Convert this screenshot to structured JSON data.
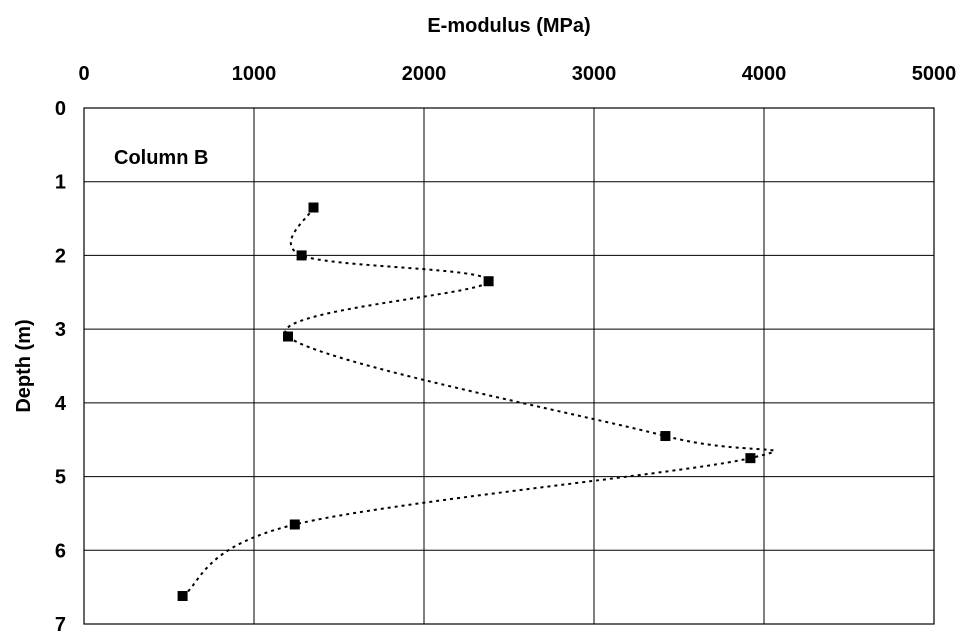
{
  "chart_data": {
    "type": "scatter",
    "title": "",
    "xlabel": "E-modulus (MPa)",
    "ylabel": "Depth (m)",
    "xlim": [
      0,
      5000
    ],
    "ylim": [
      0,
      7
    ],
    "y_inverted": true,
    "x_axis_position": "top",
    "grid": true,
    "legend": "none",
    "x_ticks": [
      "0",
      "1000",
      "2000",
      "3000",
      "4000",
      "5000"
    ],
    "y_ticks": [
      "0",
      "1",
      "2",
      "3",
      "4",
      "5",
      "6",
      "7"
    ],
    "annotation": "Column B",
    "series": [
      {
        "marker": "square",
        "line_style": "dotted-smooth",
        "color": "#000000",
        "points": [
          {
            "x": 1350,
            "y": 1.35
          },
          {
            "x": 1280,
            "y": 2.0
          },
          {
            "x": 2380,
            "y": 2.35
          },
          {
            "x": 1200,
            "y": 3.1
          },
          {
            "x": 3420,
            "y": 4.45
          },
          {
            "x": 3920,
            "y": 4.75
          },
          {
            "x": 1240,
            "y": 5.65
          },
          {
            "x": 580,
            "y": 6.62
          }
        ]
      }
    ]
  }
}
